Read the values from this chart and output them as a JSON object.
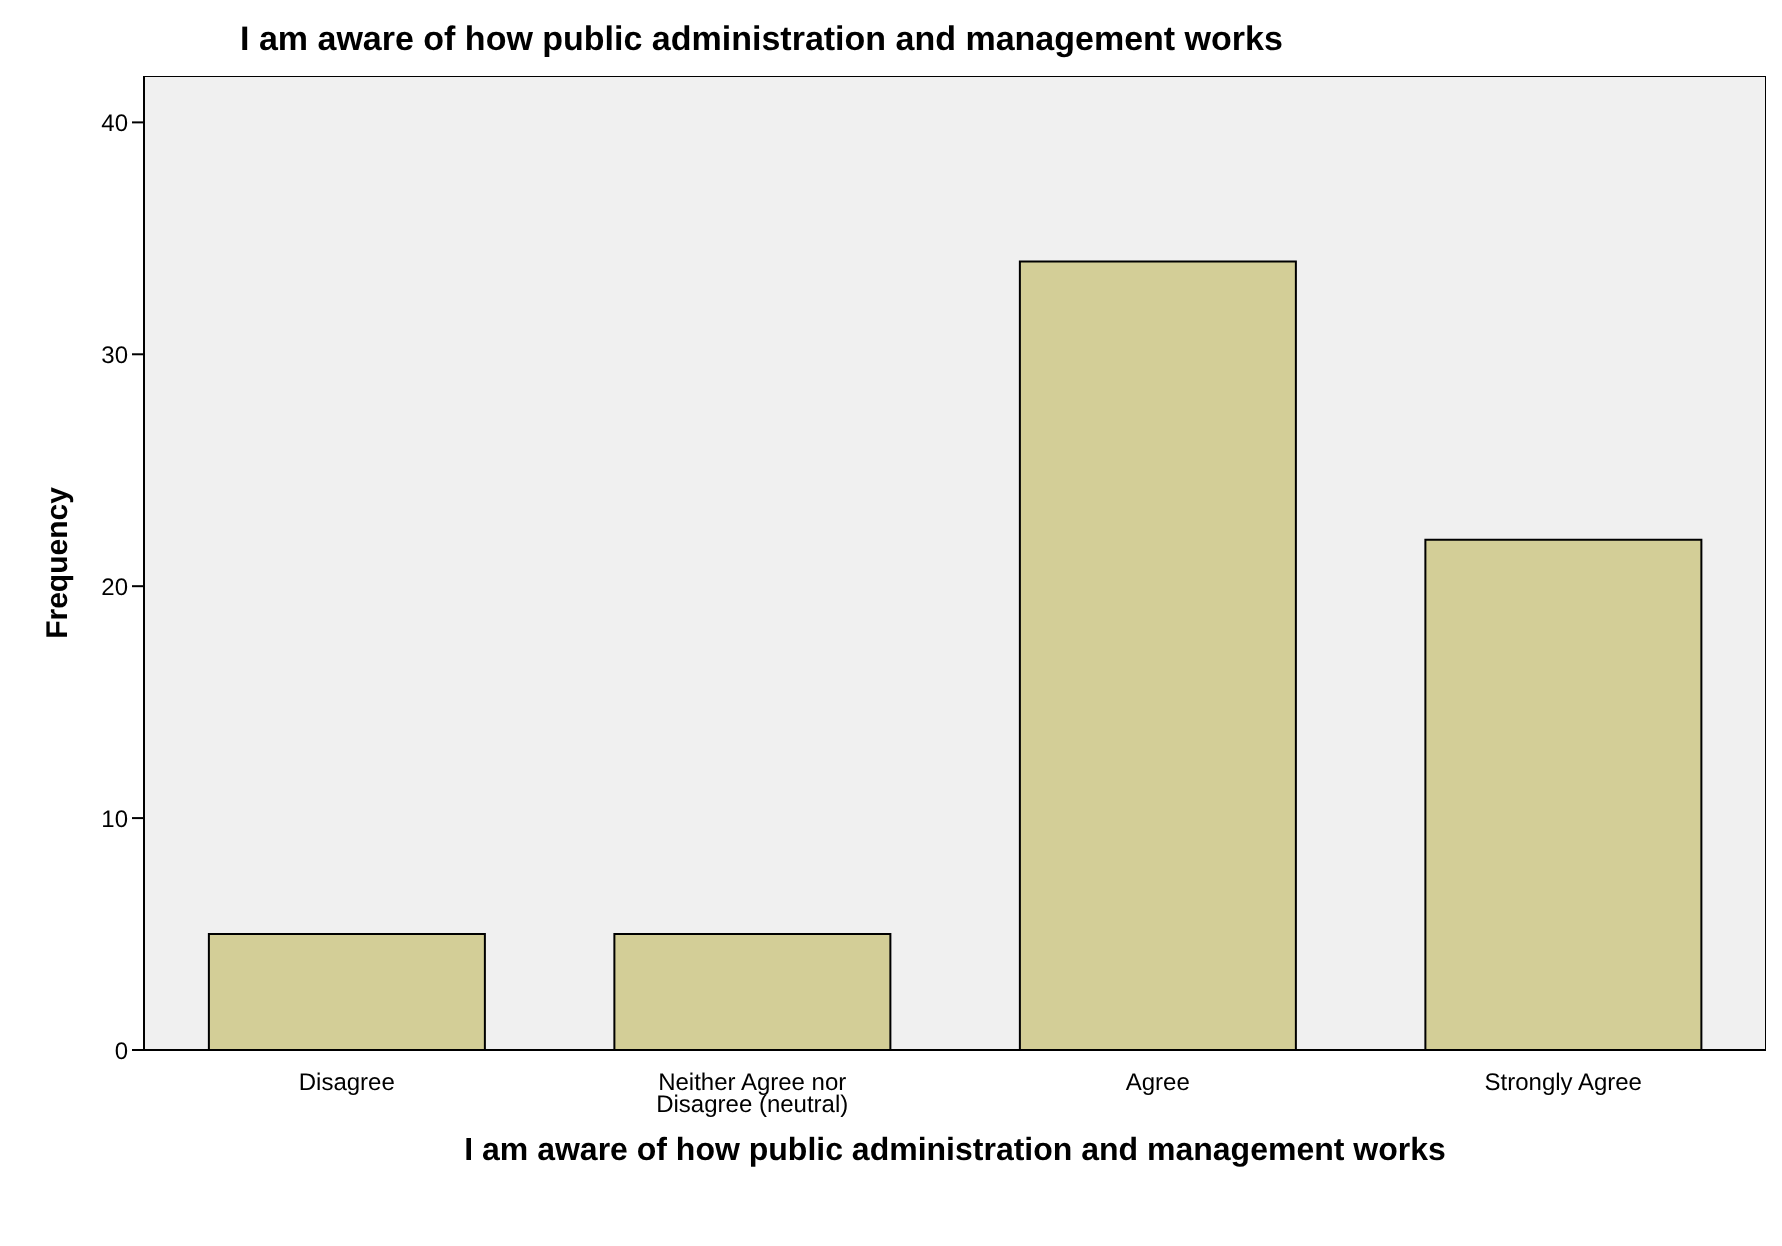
{
  "chart_data": {
    "type": "bar",
    "title": "I am aware of how public administration and management works",
    "xlabel": "I am aware of how public administration and management works",
    "ylabel": "Frequency",
    "categories": [
      "Disagree",
      "Neither Agree nor Disagree (neutral)",
      "Agree",
      "Strongly Agree"
    ],
    "values": [
      5,
      5,
      34,
      22
    ],
    "color": "#d3ce97",
    "ylim": [
      0,
      42
    ],
    "yticks": [
      0,
      10,
      20,
      30,
      40
    ],
    "grid": false
  }
}
